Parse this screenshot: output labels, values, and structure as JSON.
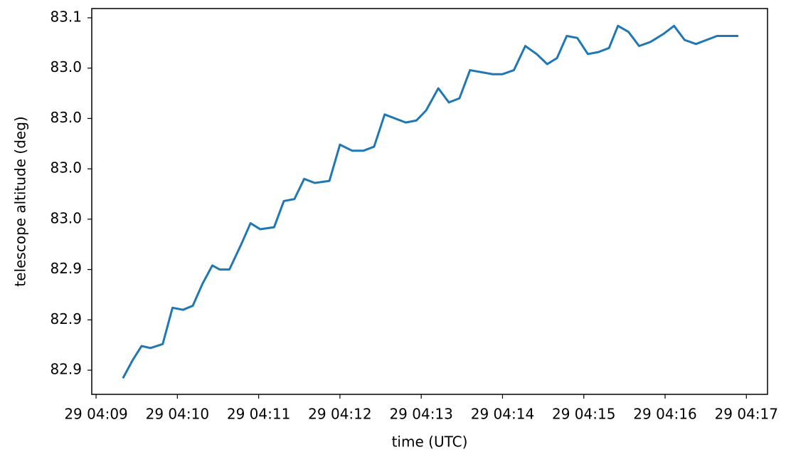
{
  "chart_data": {
    "type": "line",
    "xlabel": "time (UTC)",
    "ylabel": "telescope altitude (deg)",
    "x": [
      9.33,
      9.45,
      9.56,
      9.67,
      9.82,
      9.94,
      10.07,
      10.19,
      10.31,
      10.43,
      10.52,
      10.64,
      10.78,
      10.9,
      11.02,
      11.19,
      11.31,
      11.44,
      11.56,
      11.69,
      11.87,
      12.0,
      12.15,
      12.29,
      12.42,
      12.55,
      12.81,
      12.94,
      13.06,
      13.21,
      13.34,
      13.47,
      13.6,
      13.88,
      14.0,
      14.14,
      14.28,
      14.42,
      14.55,
      14.67,
      14.79,
      14.92,
      15.05,
      15.18,
      15.31,
      15.42,
      15.55,
      15.68,
      15.82,
      15.98,
      16.11,
      16.24,
      16.38,
      16.51,
      16.64,
      16.78,
      16.9
    ],
    "series": [
      {
        "color": "#1f77b4",
        "values": [
          82.896,
          82.905,
          82.912,
          82.911,
          82.913,
          82.931,
          82.93,
          82.932,
          82.943,
          82.952,
          82.95,
          82.95,
          82.962,
          82.973,
          82.97,
          82.971,
          82.984,
          82.985,
          82.995,
          82.993,
          82.994,
          83.012,
          83.009,
          83.009,
          83.011,
          83.027,
          83.023,
          83.024,
          83.029,
          83.04,
          83.033,
          83.035,
          83.049,
          83.047,
          83.047,
          83.049,
          83.061,
          83.057,
          83.052,
          83.055,
          83.066,
          83.065,
          83.057,
          83.058,
          83.06,
          83.071,
          83.068,
          83.061,
          83.063,
          83.067,
          83.071,
          83.064,
          83.062,
          83.064,
          83.066,
          83.066,
          83.066
        ]
      }
    ],
    "xlim": [
      8.947,
      17.26
    ],
    "xticks": [
      {
        "value": 9,
        "label": "29 04:09"
      },
      {
        "value": 10,
        "label": "29 04:10"
      },
      {
        "value": 11,
        "label": "29 04:11"
      },
      {
        "value": 12,
        "label": "29 04:12"
      },
      {
        "value": 13,
        "label": "29 04:13"
      },
      {
        "value": 14,
        "label": "29 04:14"
      },
      {
        "value": 15,
        "label": "29 04:15"
      },
      {
        "value": 16,
        "label": "29 04:16"
      },
      {
        "value": 17,
        "label": "29 04:17"
      }
    ],
    "ylim": [
      82.888,
      83.0796
    ],
    "yticks": [
      82.9,
      {
        "value": 82.925,
        "label": "82.9"
      },
      {
        "value": 82.95,
        "label": "82.9"
      },
      {
        "value": 82.975,
        "label": "83.0"
      },
      {
        "value": 83.0,
        "label": "83.0"
      },
      {
        "value": 83.025,
        "label": "83.0"
      },
      {
        "value": 83.05,
        "label": "83.0"
      },
      {
        "value": 83.075,
        "label": "83.1"
      }
    ],
    "grid": false
  }
}
